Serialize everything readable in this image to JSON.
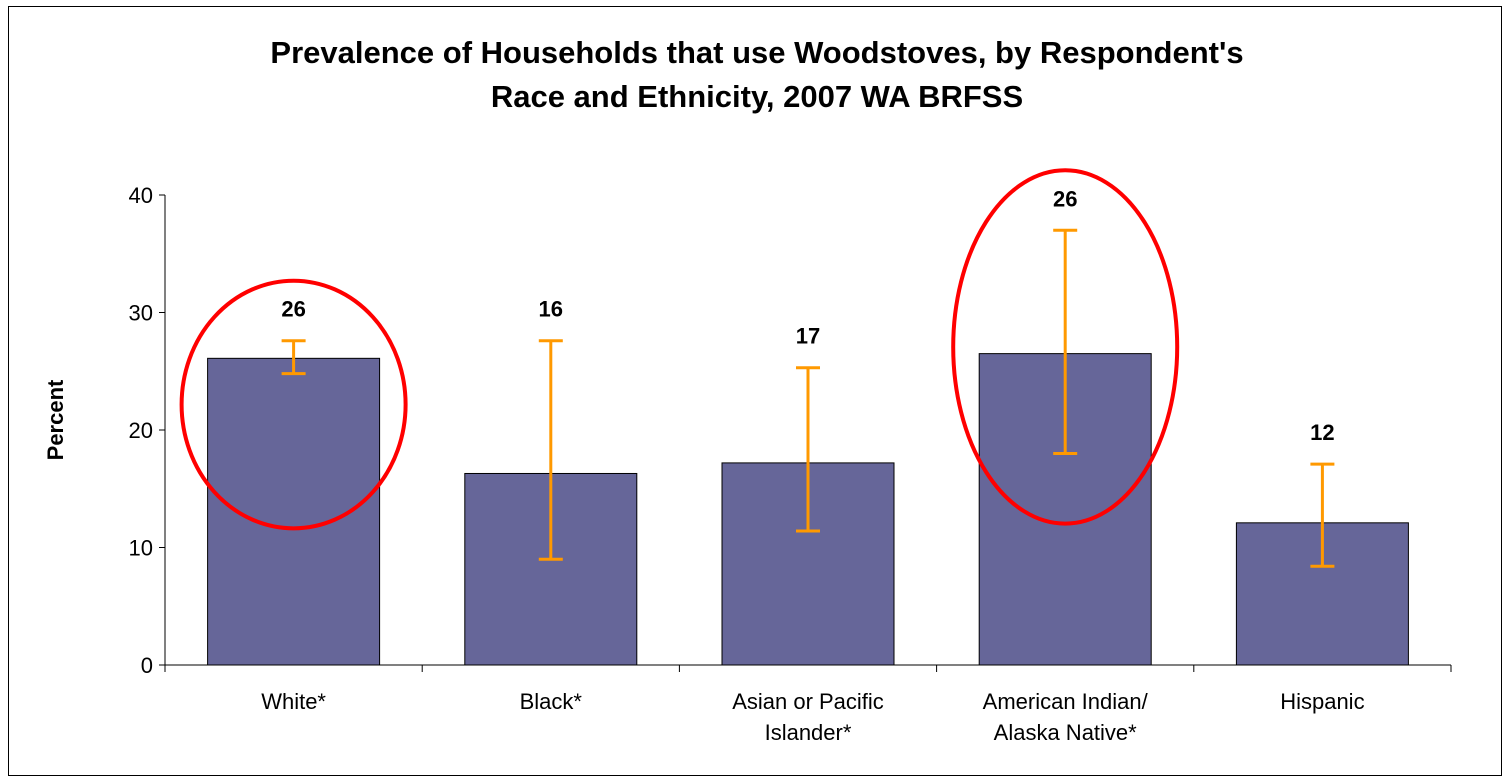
{
  "chart_data": {
    "type": "bar",
    "title": "Prevalence of Households that use Woodstoves, by Respondent's Race and Ethnicity, 2007 WA BRFSS",
    "title_lines": [
      "Prevalence of Households that use Woodstoves, by Respondent's",
      "Race and Ethnicity, 2007 WA BRFSS"
    ],
    "xlabel": "",
    "ylabel": "Percent",
    "ylim": [
      0,
      40
    ],
    "yticks": [
      "0",
      "10",
      "20",
      "30",
      "40"
    ],
    "grid": false,
    "categories": [
      "White*",
      "Black*",
      "Asian or Pacific Islander*",
      "American Indian/ Alaska Native*",
      "Hispanic"
    ],
    "category_lines": [
      [
        "White*"
      ],
      [
        "Black*"
      ],
      [
        "Asian or Pacific",
        "Islander*"
      ],
      [
        "American Indian/",
        "Alaska Native*"
      ],
      [
        "Hispanic"
      ]
    ],
    "values": [
      26.1,
      16.3,
      17.2,
      26.5,
      12.1
    ],
    "data_labels": [
      "26",
      "16",
      "17",
      "26",
      "12"
    ],
    "error_low": [
      24.8,
      9.0,
      11.4,
      18.0,
      8.4
    ],
    "error_high": [
      27.6,
      27.6,
      25.3,
      37.0,
      17.1
    ],
    "highlighted": [
      true,
      false,
      false,
      true,
      false
    ],
    "colors": {
      "bar": "#666699",
      "error_bar": "#FF9900",
      "highlight_ellipse": "#FF0000",
      "axis": "#000000"
    }
  }
}
